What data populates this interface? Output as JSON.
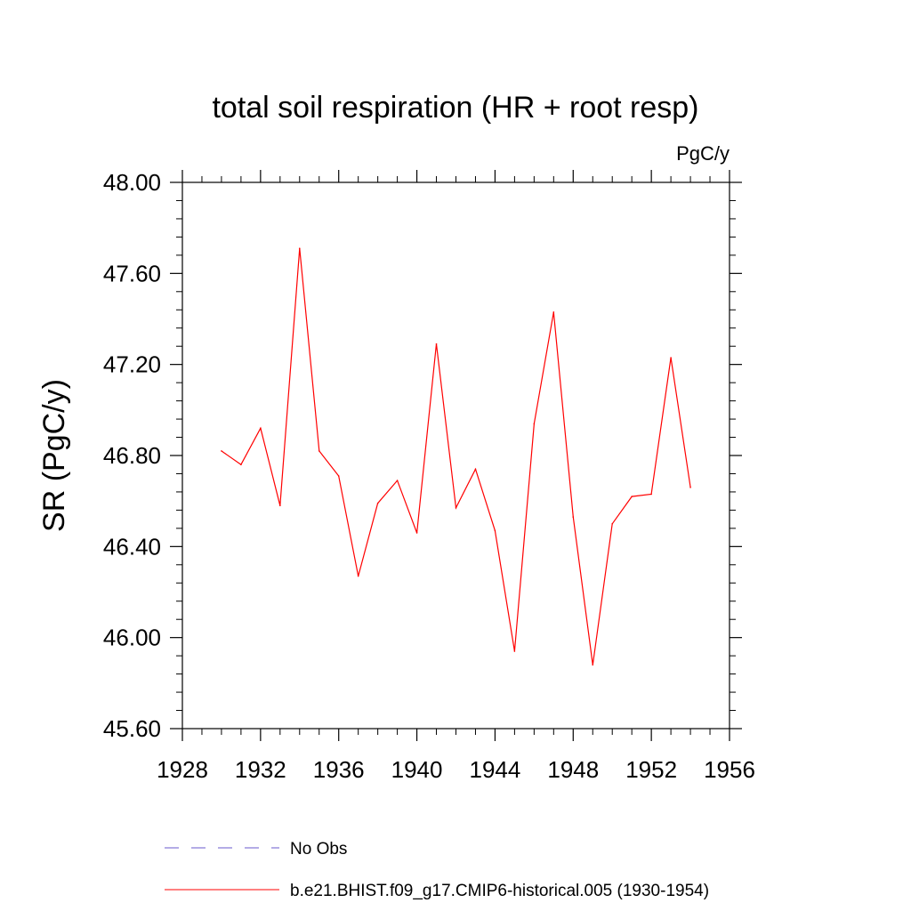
{
  "chart_data": {
    "type": "line",
    "title": "total soil respiration (HR + root resp)",
    "units": "PgC/y",
    "xlabel": "",
    "ylabel": "SR  (PgC/y)",
    "xlim": [
      1928,
      1956
    ],
    "ylim": [
      45.6,
      48.0
    ],
    "x_ticks": [
      1928,
      1932,
      1936,
      1940,
      1944,
      1948,
      1952,
      1956
    ],
    "x_tick_labels": [
      "1928",
      "1932",
      "1936",
      "1940",
      "1944",
      "1948",
      "1952",
      "1956"
    ],
    "y_ticks": [
      45.6,
      46.0,
      46.4,
      46.8,
      47.2,
      47.6,
      48.0
    ],
    "y_tick_labels": [
      "45.60",
      "46.00",
      "46.40",
      "46.80",
      "47.20",
      "47.60",
      "48.00"
    ],
    "grid": false,
    "series": [
      {
        "name": "b.e21.BHIST.f09_g17.CMIP6-historical.005 (1930-1954)",
        "color": "#ff0000",
        "style": "solid",
        "x": [
          1930,
          1931,
          1932,
          1933,
          1934,
          1935,
          1936,
          1937,
          1938,
          1939,
          1940,
          1941,
          1942,
          1943,
          1944,
          1945,
          1946,
          1947,
          1948,
          1949,
          1950,
          1951,
          1952,
          1953,
          1954
        ],
        "values": [
          46.82,
          46.76,
          46.92,
          46.58,
          47.71,
          46.82,
          46.71,
          46.27,
          46.59,
          46.69,
          46.46,
          47.29,
          46.57,
          46.74,
          46.47,
          45.94,
          46.94,
          47.43,
          46.53,
          45.88,
          46.5,
          46.62,
          46.63,
          47.23,
          46.66
        ]
      }
    ],
    "legend": [
      {
        "label": "No Obs",
        "color": "#6a5acd",
        "style": "dashed"
      },
      {
        "label": "b.e21.BHIST.f09_g17.CMIP6-historical.005 (1930-1954)",
        "color": "#ff0000",
        "style": "solid"
      }
    ],
    "legend_position": "bottom"
  }
}
